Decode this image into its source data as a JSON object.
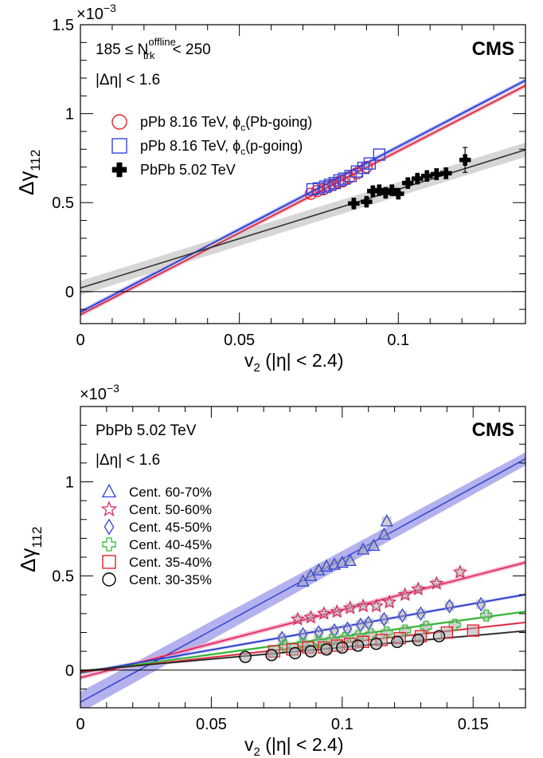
{
  "chart_data": [
    {
      "type": "scatter",
      "xlabel_main": "v",
      "xlabel_sub": "2",
      "xlabel_rest": " (|η| < 2.4)",
      "ylabel_main": "Δγ",
      "ylabel_sub": "112",
      "exponent_label": "×10",
      "exponent_power": "−3",
      "xlim": [
        0,
        0.14
      ],
      "ylim": [
        -0.18,
        1.5
      ],
      "x_ticks": [
        {
          "v": 0,
          "label": "0"
        },
        {
          "v": 0.05,
          "label": "0.05"
        },
        {
          "v": 0.1,
          "label": "0.1"
        }
      ],
      "y_ticks": [
        {
          "v": 0,
          "label": "0"
        },
        {
          "v": 0.5,
          "label": "0.5"
        },
        {
          "v": 1,
          "label": "1"
        },
        {
          "v": 1.5,
          "label": "1.5"
        }
      ],
      "experiment_label": "CMS",
      "selection_text": "185 ≤ N",
      "selection_sup": "offline",
      "selection_sub": "trk",
      "selection_rest": " < 250",
      "eta_cut": "|Δη| < 1.6",
      "grid": false,
      "legend_position": "upper-left",
      "series": [
        {
          "name": "pPb 8.16 TeV, ϕc(Pb-going)",
          "legend_main": "pPb 8.16 TeV, ϕ",
          "legend_sub": "c",
          "legend_rest": "(Pb-going)",
          "marker": "open-circle",
          "color": "#e8202a",
          "fit_color": "#d81e3c",
          "band_color": "#f4a0a8",
          "fit": {
            "slope": 9.2,
            "intercept": -0.13,
            "band": 0.012
          },
          "x": [
            0.0725,
            0.0745,
            0.0765,
            0.078,
            0.0795,
            0.081,
            0.0825,
            0.0845,
            0.087,
            0.09
          ],
          "y": [
            0.55,
            0.565,
            0.575,
            0.59,
            0.6,
            0.615,
            0.62,
            0.64,
            0.665,
            0.7
          ]
        },
        {
          "name": "pPb 8.16 TeV, ϕc(p-going)",
          "legend_main": "pPb 8.16 TeV, ϕ",
          "legend_sub": "c",
          "legend_rest": "(p-going)",
          "marker": "open-square",
          "color": "#3344dd",
          "fit_color": "#2233cc",
          "band_color": "#9aa0f0",
          "fit": {
            "slope": 9.3,
            "intercept": -0.115,
            "band": 0.012
          },
          "x": [
            0.073,
            0.075,
            0.077,
            0.0785,
            0.08,
            0.0815,
            0.083,
            0.085,
            0.087,
            0.089,
            0.091,
            0.094
          ],
          "y": [
            0.575,
            0.58,
            0.59,
            0.6,
            0.61,
            0.625,
            0.635,
            0.65,
            0.675,
            0.695,
            0.72,
            0.77
          ]
        },
        {
          "name": "PbPb 5.02 TeV",
          "legend_main": "PbPb 5.02 TeV",
          "legend_sub": "",
          "legend_rest": "",
          "marker": "filled-cross",
          "color": "#000000",
          "fit_color": "#333333",
          "band_color": "#c8c8c8",
          "fit": {
            "slope": 5.55,
            "intercept": 0.02,
            "band": 0.04
          },
          "x": [
            0.086,
            0.09,
            0.092,
            0.094,
            0.096,
            0.098,
            0.1,
            0.103,
            0.106,
            0.109,
            0.112,
            0.115,
            0.121
          ],
          "y": [
            0.495,
            0.505,
            0.565,
            0.57,
            0.555,
            0.57,
            0.55,
            0.61,
            0.635,
            0.65,
            0.66,
            0.665,
            0.74
          ],
          "yerr": [
            0.02,
            0.02,
            0.02,
            0.02,
            0.02,
            0.02,
            0.02,
            0.02,
            0.02,
            0.02,
            0.03,
            0.03,
            0.07
          ]
        }
      ]
    },
    {
      "type": "scatter",
      "xlabel_main": "v",
      "xlabel_sub": "2",
      "xlabel_rest": " (|η| < 2.4)",
      "ylabel_main": "Δγ",
      "ylabel_sub": "112",
      "exponent_label": "×10",
      "exponent_power": "−3",
      "xlim": [
        0,
        0.17
      ],
      "ylim": [
        -0.2,
        1.4
      ],
      "x_ticks": [
        {
          "v": 0,
          "label": "0"
        },
        {
          "v": 0.05,
          "label": "0.05"
        },
        {
          "v": 0.1,
          "label": "0.1"
        },
        {
          "v": 0.15,
          "label": "0.15"
        }
      ],
      "y_ticks": [
        {
          "v": 0,
          "label": "0"
        },
        {
          "v": 0.5,
          "label": "0.5"
        },
        {
          "v": 1,
          "label": "1"
        }
      ],
      "experiment_label": "CMS",
      "system_label": "PbPb 5.02 TeV",
      "eta_cut": "|Δη| < 1.6",
      "grid": false,
      "legend_position": "left",
      "series": [
        {
          "name": "Cent. 60-70%",
          "marker": "open-triangle",
          "color": "#3344dd",
          "fit_color": "#3a4ad0",
          "band_color": "#9b98e8",
          "fit": {
            "slope": 7.6,
            "intercept": -0.17,
            "band_at0": 0.055,
            "band_at_max": 0.035
          },
          "x": [
            0.085,
            0.088,
            0.091,
            0.094,
            0.097,
            0.1,
            0.103,
            0.108,
            0.112,
            0.116,
            0.117
          ],
          "y": [
            0.47,
            0.5,
            0.53,
            0.55,
            0.56,
            0.57,
            0.58,
            0.64,
            0.66,
            0.72,
            0.79
          ]
        },
        {
          "name": "Cent. 50-60%",
          "marker": "open-star",
          "color": "#e0205a",
          "fit_color": "#e0205a",
          "band_color": "#f0a0c0",
          "fit": {
            "slope": 3.6,
            "intercept": -0.04,
            "band": 0.012
          },
          "x": [
            0.083,
            0.088,
            0.093,
            0.098,
            0.103,
            0.108,
            0.113,
            0.118,
            0.124,
            0.129,
            0.136,
            0.145
          ],
          "y": [
            0.27,
            0.28,
            0.3,
            0.31,
            0.33,
            0.34,
            0.34,
            0.36,
            0.4,
            0.43,
            0.46,
            0.52
          ]
        },
        {
          "name": "Cent. 45-50%",
          "marker": "open-diamond",
          "color": "#3344dd",
          "fit_color": "#2233cc",
          "band_color": "#a8b0f0",
          "fit": {
            "slope": 2.45,
            "intercept": -0.015,
            "band": 0.008
          },
          "x": [
            0.077,
            0.085,
            0.091,
            0.097,
            0.102,
            0.107,
            0.11,
            0.116,
            0.123,
            0.13,
            0.141,
            0.153
          ],
          "y": [
            0.17,
            0.19,
            0.2,
            0.21,
            0.22,
            0.24,
            0.25,
            0.27,
            0.29,
            0.3,
            0.34,
            0.35
          ]
        },
        {
          "name": "Cent. 40-45%",
          "marker": "open-cross",
          "color": "#33bb33",
          "fit_color": "#22aa22",
          "band_color": "#a8e0a8",
          "fit": {
            "slope": 1.9,
            "intercept": -0.012,
            "band": 0.007
          },
          "x": [
            0.078,
            0.085,
            0.091,
            0.096,
            0.101,
            0.106,
            0.111,
            0.117,
            0.124,
            0.132,
            0.143,
            0.155
          ],
          "y": [
            0.13,
            0.14,
            0.15,
            0.16,
            0.17,
            0.18,
            0.19,
            0.2,
            0.21,
            0.23,
            0.24,
            0.29
          ]
        },
        {
          "name": "Cent. 35-40%",
          "marker": "open-square",
          "color": "#e8202a",
          "fit_color": "#d81e3c",
          "band_color": "#f0a8a8",
          "fit": {
            "slope": 1.55,
            "intercept": -0.01,
            "band": 0.006
          },
          "x": [
            0.074,
            0.081,
            0.087,
            0.093,
            0.098,
            0.103,
            0.108,
            0.115,
            0.122,
            0.13,
            0.14,
            0.15
          ],
          "y": [
            0.1,
            0.11,
            0.12,
            0.12,
            0.13,
            0.14,
            0.15,
            0.16,
            0.17,
            0.18,
            0.2,
            0.21
          ]
        },
        {
          "name": "Cent. 30-35%",
          "marker": "open-circle",
          "color": "#000000",
          "fit_color": "#222222",
          "band_color": "#bbbbbb",
          "fit": {
            "slope": 1.25,
            "intercept": -0.004,
            "band": 0.006
          },
          "x": [
            0.063,
            0.073,
            0.082,
            0.088,
            0.094,
            0.1,
            0.106,
            0.113,
            0.121,
            0.129,
            0.137
          ],
          "y": [
            0.07,
            0.08,
            0.09,
            0.1,
            0.11,
            0.12,
            0.13,
            0.14,
            0.15,
            0.16,
            0.18
          ]
        }
      ]
    }
  ]
}
